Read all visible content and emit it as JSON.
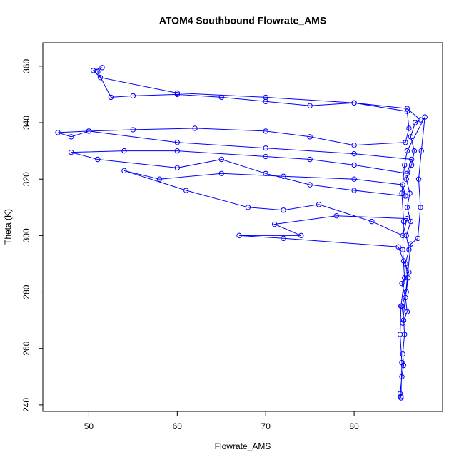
{
  "chart_data": {
    "type": "line",
    "title": "ATOM4 Southbound Flowrate_AMS",
    "x_label": "Flowrate_AMS",
    "y_label": "Theta (K)",
    "xlim": [
      44.8,
      90.0
    ],
    "ylim": [
      237.7,
      368.3
    ],
    "xticks": [
      50,
      60,
      70,
      80
    ],
    "yticks": [
      240,
      260,
      280,
      300,
      320,
      340,
      360
    ],
    "markers": true,
    "series": [
      {
        "name": "Flowrate_AMS",
        "color": "#0000ff",
        "x": [
          85.3,
          85.2,
          85.4,
          85.6,
          85.5,
          85.7,
          85.6,
          85.4,
          85.9,
          86.1,
          85.8,
          86.2,
          85.9,
          86.4,
          86.0,
          86.3,
          85.9,
          86.5,
          86.8,
          86.4,
          86.9,
          87.5,
          86.0,
          80,
          75,
          70,
          65,
          60,
          55,
          52.5,
          51,
          51.5,
          50.5,
          51.3,
          60,
          70,
          80,
          86,
          86.2,
          85.8,
          80,
          75,
          70,
          62,
          55,
          50,
          46.5,
          48,
          50,
          60,
          70,
          80,
          86.5,
          86,
          80,
          75,
          70,
          60,
          54,
          48,
          51,
          60,
          65,
          70,
          75,
          80,
          85.8,
          85.5,
          80,
          72,
          65,
          58,
          54,
          61,
          68,
          72,
          76,
          82,
          85.5,
          86,
          78,
          71,
          74,
          67,
          72,
          85,
          85.6,
          86.2,
          85.4,
          85.8,
          86.0,
          85.5,
          86.4,
          87.2,
          87.5,
          87.3,
          87.6,
          88.0,
          86.0,
          85.7,
          85.4,
          85.6,
          85.5,
          85.7,
          85.3,
          85.2,
          85.4,
          85.3
        ],
        "values": [
          242.5,
          244,
          250,
          254,
          258,
          265,
          270,
          275,
          280,
          285,
          290,
          295,
          300,
          305,
          310,
          315,
          320,
          325,
          330,
          335,
          340,
          341,
          345,
          347,
          346,
          347.5,
          349,
          350,
          349.5,
          349,
          358,
          359.5,
          358.5,
          356,
          350.5,
          349,
          347,
          344,
          338,
          333,
          332,
          335,
          337,
          338,
          337.5,
          337,
          336.5,
          335,
          337,
          333,
          331,
          329,
          327,
          322,
          325,
          327,
          328,
          330,
          330,
          329.5,
          327,
          324,
          327,
          322,
          318,
          316,
          314,
          318,
          320,
          321,
          322,
          320,
          323,
          316,
          310,
          309,
          311,
          305,
          300,
          306,
          307,
          304,
          300,
          300,
          299,
          296,
          291,
          287,
          283,
          278,
          273,
          269,
          297,
          299,
          310,
          320,
          330,
          342,
          330,
          325,
          315,
          305,
          295,
          285,
          275,
          265,
          255,
          243
        ]
      }
    ]
  }
}
